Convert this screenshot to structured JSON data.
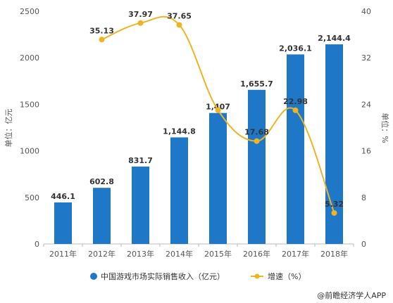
{
  "chart_data": {
    "type": "bar",
    "categories": [
      "2011年",
      "2012年",
      "2013年",
      "2014年",
      "2015年",
      "2016年",
      "2017年",
      "2018年"
    ],
    "series": [
      {
        "name": "中国游戏市场实际销售收入（亿元）",
        "type": "bar",
        "axis": "left",
        "values": [
          446.1,
          602.8,
          831.7,
          1144.8,
          1407,
          1655.7,
          2036.1,
          2144.4
        ],
        "labels": [
          "446.1",
          "602.8",
          "831.7",
          "1,144.8",
          "1,407",
          "1,655.7",
          "2,036.1",
          "2,144.4"
        ],
        "color": "#1f77c8"
      },
      {
        "name": "增速（%）",
        "type": "line",
        "axis": "right",
        "values": [
          null,
          35.13,
          37.97,
          37.65,
          23.0,
          17.68,
          22.98,
          5.32
        ],
        "labels": [
          "",
          "35.13",
          "37.97",
          "37.65",
          "",
          "17.68",
          "22.98",
          "5.32"
        ],
        "color": "#f0b323"
      }
    ],
    "ylabel_left": "单位：亿元",
    "ylabel_right": "单位：%",
    "ylim_left": [
      0,
      2500
    ],
    "yticks_left": [
      0,
      500,
      1000,
      1500,
      2000,
      2500
    ],
    "ylim_right": [
      0,
      40
    ],
    "yticks_right": [
      0,
      8,
      16,
      24,
      32,
      40
    ],
    "legend_position": "bottom",
    "grid": false
  },
  "source": "@前瞻经济学人APP"
}
